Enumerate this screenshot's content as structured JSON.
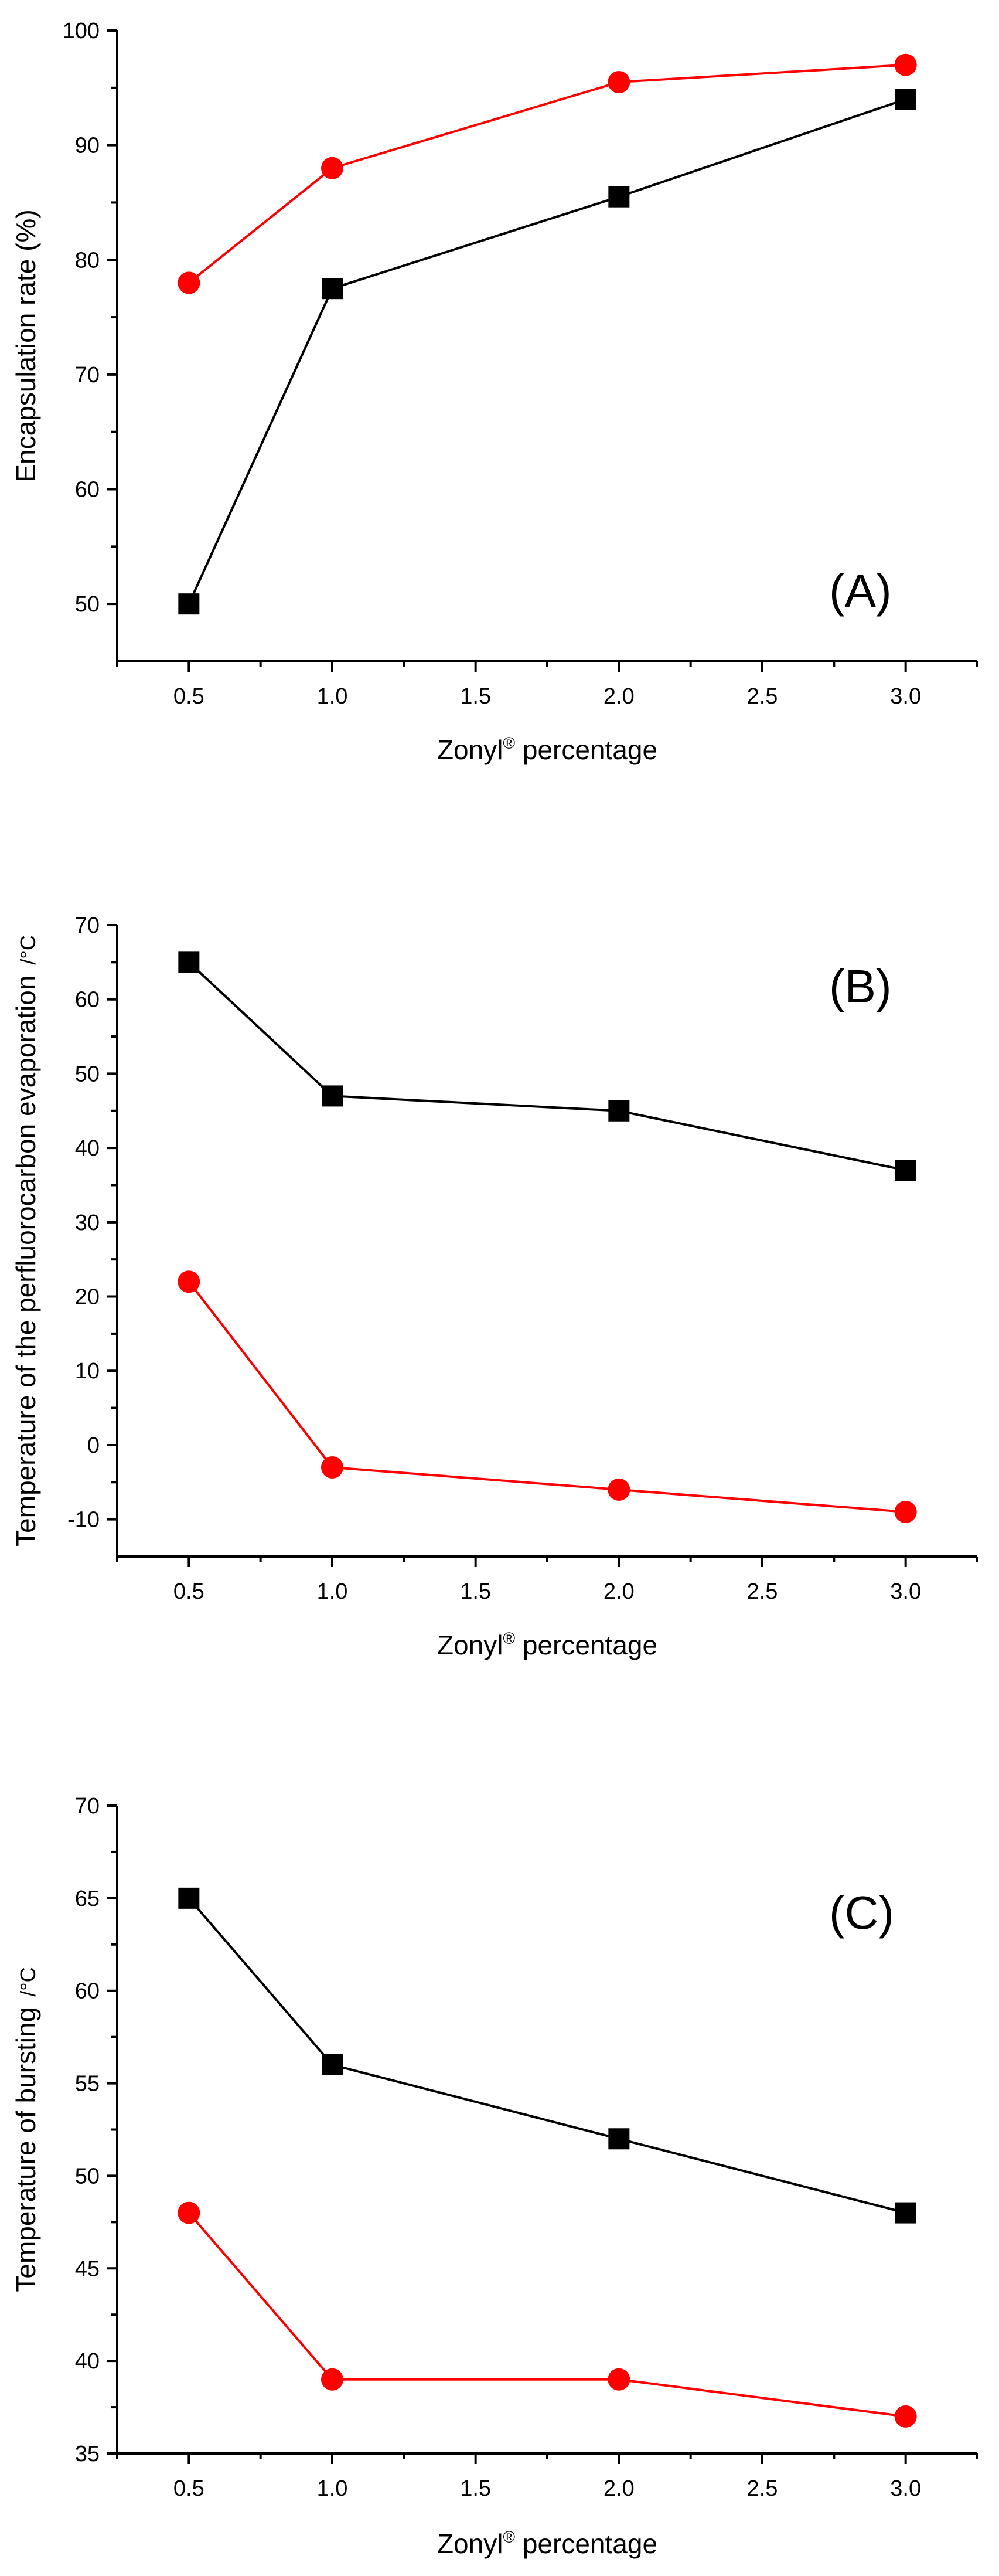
{
  "colors": {
    "series_black": "#000000",
    "series_red": "#ff0000",
    "axis": "#000000",
    "background": "#ffffff"
  },
  "chart_data": [
    {
      "type": "line",
      "panel_label": "(A)",
      "xlabel": "Zonyl",
      "xlabel_sup": "®",
      "xlabel_suffix": " percentage",
      "ylabel": "Encapsulation rate (%)",
      "xlim": [
        0.25,
        3.25
      ],
      "ylim": [
        45,
        100
      ],
      "xticks": [
        0.5,
        1.0,
        1.5,
        2.0,
        2.5,
        3.0
      ],
      "xtick_labels": [
        "0.5",
        "1.0",
        "1.5",
        "2.0",
        "2.5",
        "3.0"
      ],
      "yticks": [
        50,
        60,
        70,
        80,
        90,
        100
      ],
      "ytick_labels": [
        "50",
        "60",
        "70",
        "80",
        "90",
        "100"
      ],
      "ytick_minor": [
        55,
        65,
        75,
        85,
        95
      ],
      "x": [
        0.5,
        1.0,
        2.0,
        3.0
      ],
      "series": [
        {
          "name": "black squares",
          "marker": "square",
          "color": "#000000",
          "values": [
            50,
            77.5,
            85.5,
            94
          ]
        },
        {
          "name": "red circles",
          "marker": "circle",
          "color": "#ff0000",
          "values": [
            78,
            88,
            95.5,
            97
          ]
        }
      ]
    },
    {
      "type": "line",
      "panel_label": "(B)",
      "xlabel": "Zonyl",
      "xlabel_sup": "®",
      "xlabel_suffix": " percentage",
      "ylabel": "Temperature of the perfluorocarbon evaporation",
      "ylabel_unit": "/°C",
      "xlim": [
        0.25,
        3.25
      ],
      "ylim": [
        -15,
        70
      ],
      "xticks": [
        0.5,
        1.0,
        1.5,
        2.0,
        2.5,
        3.0
      ],
      "xtick_labels": [
        "0.5",
        "1.0",
        "1.5",
        "2.0",
        "2.5",
        "3.0"
      ],
      "yticks": [
        -10,
        0,
        10,
        20,
        30,
        40,
        50,
        60,
        70
      ],
      "ytick_labels": [
        "-10",
        "0",
        "10",
        "20",
        "30",
        "40",
        "50",
        "60",
        "70"
      ],
      "ytick_minor": [
        -5,
        5,
        15,
        25,
        35,
        45,
        55,
        65
      ],
      "x": [
        0.5,
        1.0,
        2.0,
        3.0
      ],
      "series": [
        {
          "name": "black squares",
          "marker": "square",
          "color": "#000000",
          "values": [
            65,
            47,
            45,
            37
          ]
        },
        {
          "name": "red circles",
          "marker": "circle",
          "color": "#ff0000",
          "values": [
            22,
            -3,
            -6,
            -9
          ]
        }
      ]
    },
    {
      "type": "line",
      "panel_label": "(C)",
      "xlabel": "Zonyl",
      "xlabel_sup": "®",
      "xlabel_suffix": " percentage",
      "ylabel": "Temperature of bursting",
      "ylabel_unit": "/°C",
      "xlim": [
        0.25,
        3.25
      ],
      "ylim": [
        35,
        70
      ],
      "xticks": [
        0.5,
        1.0,
        1.5,
        2.0,
        2.5,
        3.0
      ],
      "xtick_labels": [
        "0.5",
        "1.0",
        "1.5",
        "2.0",
        "2.5",
        "3.0"
      ],
      "yticks": [
        35,
        40,
        45,
        50,
        55,
        60,
        65,
        70
      ],
      "ytick_labels": [
        "35",
        "40",
        "45",
        "50",
        "55",
        "60",
        "65",
        "70"
      ],
      "ytick_minor": [
        37.5,
        42.5,
        47.5,
        52.5,
        57.5,
        62.5,
        67.5
      ],
      "x": [
        0.5,
        1.0,
        2.0,
        3.0
      ],
      "series": [
        {
          "name": "black squares",
          "marker": "square",
          "color": "#000000",
          "values": [
            65,
            56,
            52,
            48
          ]
        },
        {
          "name": "red circles",
          "marker": "circle",
          "color": "#ff0000",
          "values": [
            48,
            39,
            39,
            37
          ]
        }
      ]
    }
  ]
}
